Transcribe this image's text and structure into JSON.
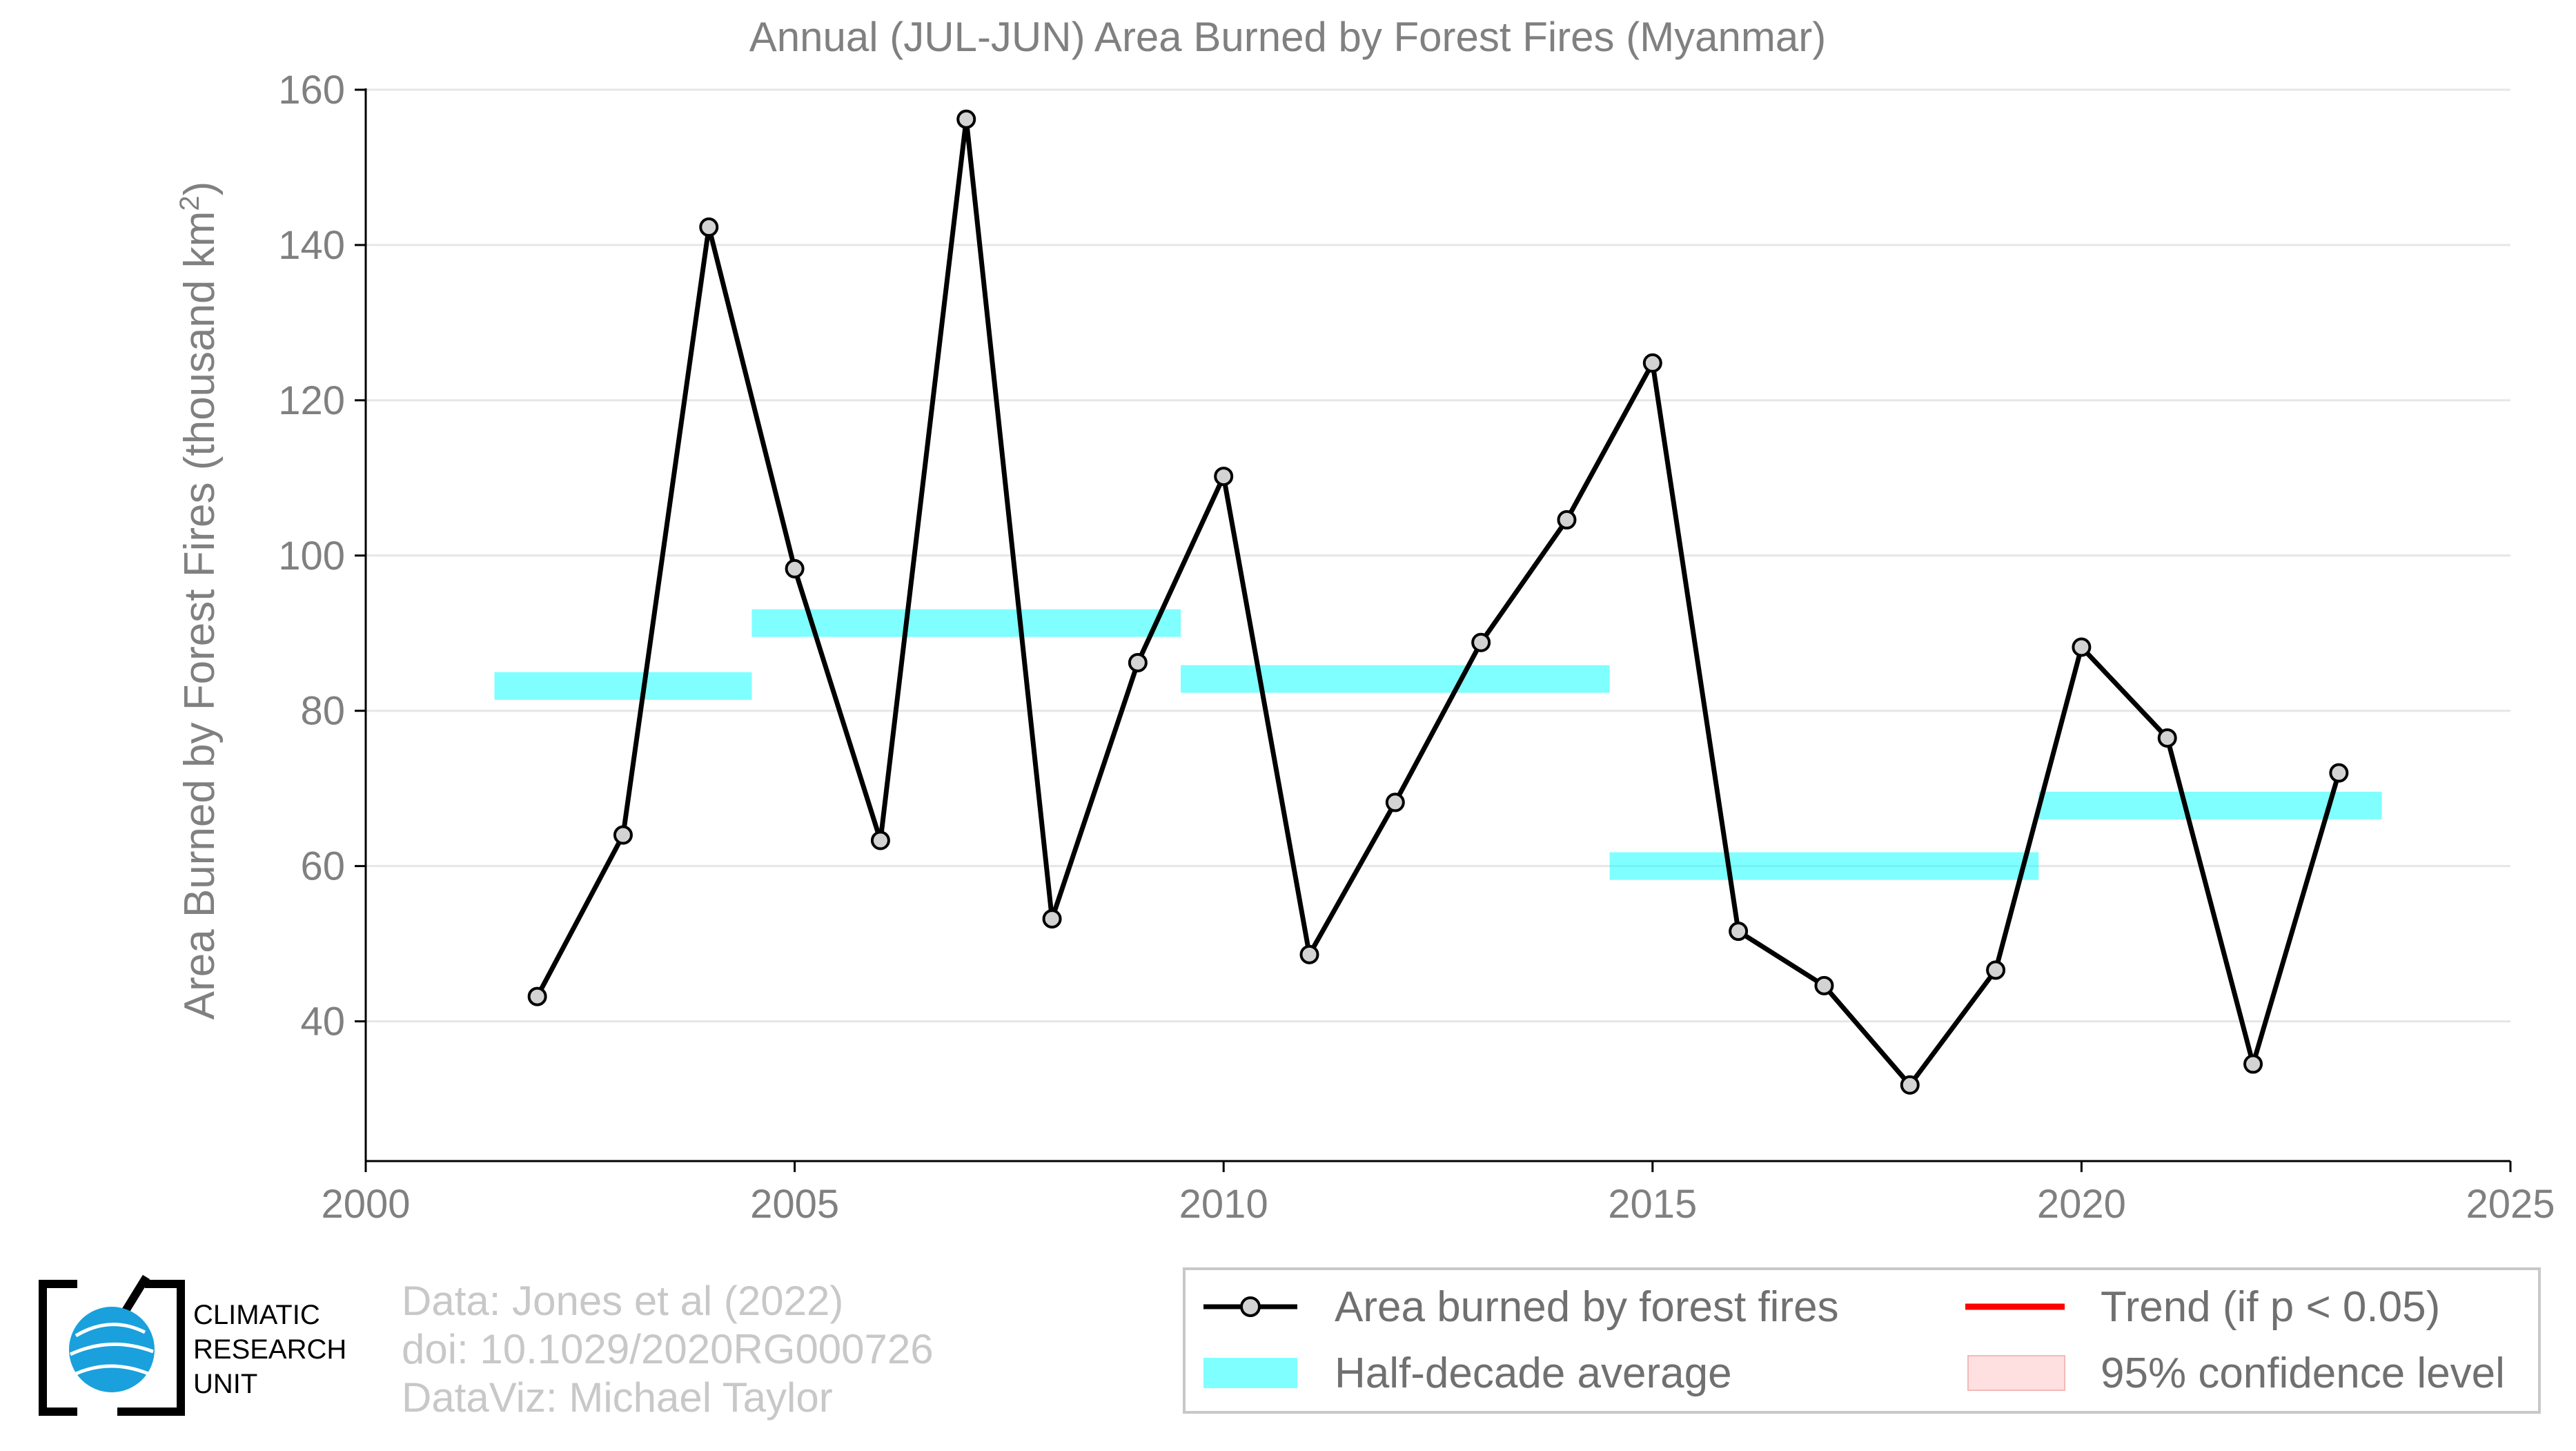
{
  "chart_data": {
    "type": "line",
    "title": "Annual (JUL-JUN) Area Burned by Forest Fires (Myanmar)",
    "ylabel": "Area Burned by Forest Fires (thousand km",
    "ylabel_superscript": "2",
    "ylabel_close": ")",
    "xlim": [
      2000,
      2025
    ],
    "ylim": [
      22,
      160
    ],
    "x_ticks": [
      2000,
      2005,
      2010,
      2015,
      2020,
      2025
    ],
    "y_ticks": [
      40,
      60,
      80,
      100,
      120,
      140,
      160
    ],
    "grid": "horizontal",
    "legend_position": "bottom-right",
    "series": [
      {
        "name": "Area burned by forest fires",
        "color": "#000000",
        "marker_fill": "#d3d3d3",
        "x": [
          2002,
          2003,
          2004,
          2005,
          2006,
          2007,
          2008,
          2009,
          2010,
          2011,
          2012,
          2013,
          2014,
          2015,
          2016,
          2017,
          2018,
          2019,
          2020,
          2021,
          2022,
          2023
        ],
        "y": [
          43.2,
          64,
          142.3,
          98.3,
          63.3,
          156.2,
          53.2,
          86.2,
          110.2,
          48.6,
          68.2,
          88.8,
          104.6,
          124.8,
          51.6,
          44.6,
          31.8,
          46.6,
          88.2,
          76.5,
          34.5,
          72
        ]
      }
    ],
    "half_decade_average": {
      "name": "Half-decade average",
      "color": "#00ffff",
      "segments": [
        {
          "x0": 2001.5,
          "x1": 2004.5,
          "y": 83.2
        },
        {
          "x0": 2004.5,
          "x1": 2009.5,
          "y": 91.3
        },
        {
          "x0": 2009.5,
          "x1": 2014.5,
          "y": 84.1
        },
        {
          "x0": 2014.5,
          "x1": 2019.5,
          "y": 60
        },
        {
          "x0": 2019.5,
          "x1": 2023.5,
          "y": 67.8
        }
      ]
    },
    "legend": [
      {
        "label": "Area burned by forest fires",
        "kind": "line-marker",
        "color": "#000000"
      },
      {
        "label": "Trend (if p < 0.05)",
        "kind": "line",
        "color": "#ff0000"
      },
      {
        "label": "Half-decade average",
        "kind": "band",
        "color": "#00ffff"
      },
      {
        "label": "95% confidence level",
        "kind": "band",
        "color": "#ffcccc"
      }
    ]
  },
  "credits": {
    "line1": "Data: Jones et al (2022)",
    "line2": "doi: 10.1029/2020RG000726",
    "line3": "DataViz: Michael Taylor"
  },
  "logo": {
    "line1": "CLIMATIC",
    "line2": "RESEARCH",
    "line3": "UNIT"
  }
}
